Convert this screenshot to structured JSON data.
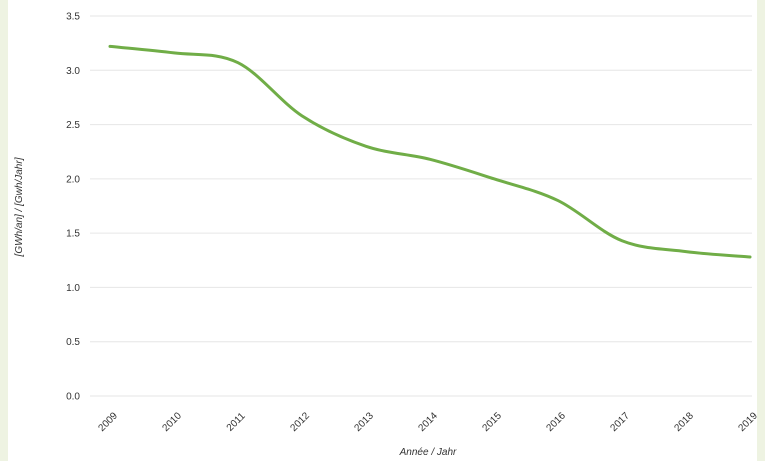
{
  "chart_data": {
    "type": "line",
    "title": "",
    "xlabel": "Année / Jahr",
    "ylabel": "[GWh/an] / [Gwh/Jahr]",
    "categories": [
      "2009",
      "2010",
      "2011",
      "2012",
      "2013",
      "2014",
      "2015",
      "2016",
      "2017",
      "2018",
      "2019"
    ],
    "y_ticks": [
      "0.0",
      "0.5",
      "1.0",
      "1.5",
      "2.0",
      "2.5",
      "3.0",
      "3.5"
    ],
    "ylim": [
      0,
      3.5
    ],
    "grid": true,
    "legend": "none",
    "series": [
      {
        "values": [
          3.22,
          3.16,
          3.07,
          2.58,
          2.3,
          2.18,
          2.0,
          1.8,
          1.43,
          1.33,
          1.28
        ],
        "color": "#70ad47"
      }
    ]
  }
}
